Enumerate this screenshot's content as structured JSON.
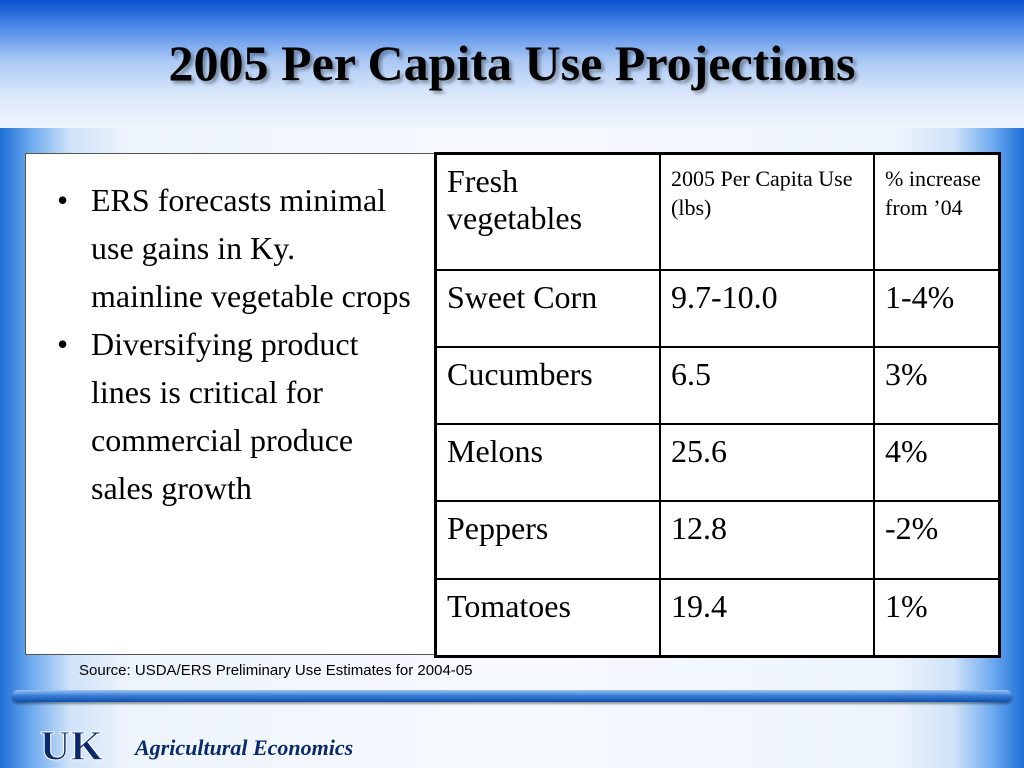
{
  "slide": {
    "title": "2005 Per Capita Use Projections"
  },
  "bullets": [
    "ERS forecasts minimal use gains in Ky. mainline vegetable crops",
    "Diversifying product lines is critical for commercial produce sales growth"
  ],
  "table": {
    "headers": [
      "Fresh vegetables",
      "2005 Per Capita Use (lbs)",
      "% increase from ’04"
    ],
    "rows": [
      [
        "Sweet Corn",
        "9.7-10.0",
        "1-4%"
      ],
      [
        "Cucumbers",
        "6.5",
        "3%"
      ],
      [
        "Melons",
        "25.6",
        "4%"
      ],
      [
        "Peppers",
        "12.8",
        "-2%"
      ],
      [
        "Tomatoes",
        "19.4",
        "1%"
      ]
    ]
  },
  "source": "Source:  USDA/ERS Preliminary Use Estimates for 2004-05",
  "footer": {
    "logo_text": "UK",
    "department": "Agricultural Economics",
    "colors": {
      "brand_blue": "#0b2a6e",
      "accent_blue": "#1e6fd6"
    }
  }
}
